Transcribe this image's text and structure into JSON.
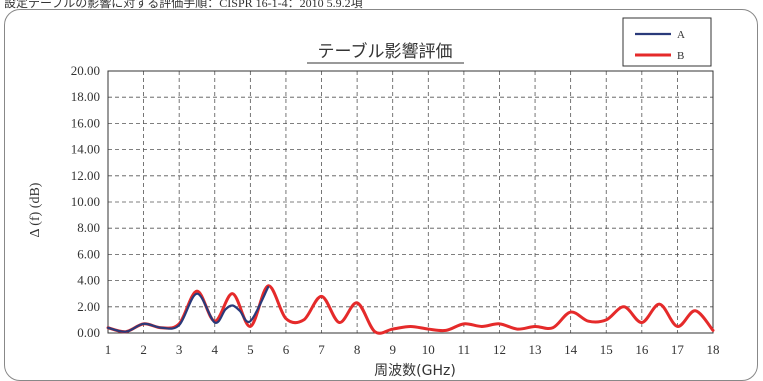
{
  "header": {
    "text": "設定テーブルの影響に対する評価手順：CISPR 16-1-4：2010 5.9.2項"
  },
  "chart_data": {
    "type": "line",
    "title": "テーブル影響評価",
    "xlabel": "周波数(GHz)",
    "ylabel": "Δ (f) (dB)",
    "xlim": [
      1,
      18
    ],
    "ylim": [
      0,
      20
    ],
    "x_ticks": [
      "1",
      "2",
      "3",
      "4",
      "5",
      "6",
      "7",
      "8",
      "9",
      "10",
      "11",
      "12",
      "13",
      "14",
      "15",
      "16",
      "17",
      "18"
    ],
    "y_ticks": [
      "0.00",
      "2.00",
      "4.00",
      "6.00",
      "8.00",
      "10.00",
      "12.00",
      "14.00",
      "16.00",
      "18.00",
      "20.00"
    ],
    "grid": true,
    "legend_position": "top-right",
    "series": [
      {
        "name": "A",
        "color": "#2a3a7a",
        "x": [
          1.0,
          1.5,
          2.0,
          2.5,
          3.0,
          3.5,
          4.0,
          4.3,
          4.5,
          4.7,
          5.0,
          5.5
        ],
        "y": [
          0.4,
          0.1,
          0.7,
          0.4,
          0.6,
          3.0,
          0.8,
          1.8,
          2.1,
          1.7,
          0.9,
          3.5
        ]
      },
      {
        "name": "B",
        "color": "#e52a2a",
        "x": [
          1.0,
          1.5,
          2.0,
          2.5,
          3.0,
          3.5,
          4.0,
          4.5,
          5.0,
          5.5,
          6.0,
          6.5,
          7.0,
          7.5,
          8.0,
          8.5,
          9.0,
          9.5,
          10.0,
          10.5,
          11.0,
          11.5,
          12.0,
          12.5,
          13.0,
          13.5,
          14.0,
          14.5,
          15.0,
          15.5,
          16.0,
          16.5,
          17.0,
          17.5,
          18.0
        ],
        "y": [
          0.4,
          0.1,
          0.7,
          0.4,
          0.7,
          3.2,
          0.9,
          3.0,
          0.5,
          3.6,
          1.1,
          1.0,
          2.8,
          0.8,
          2.3,
          0.1,
          0.3,
          0.5,
          0.3,
          0.2,
          0.7,
          0.5,
          0.7,
          0.3,
          0.5,
          0.4,
          1.6,
          0.9,
          1.0,
          2.0,
          0.8,
          2.2,
          0.5,
          1.7,
          0.2
        ]
      }
    ]
  }
}
